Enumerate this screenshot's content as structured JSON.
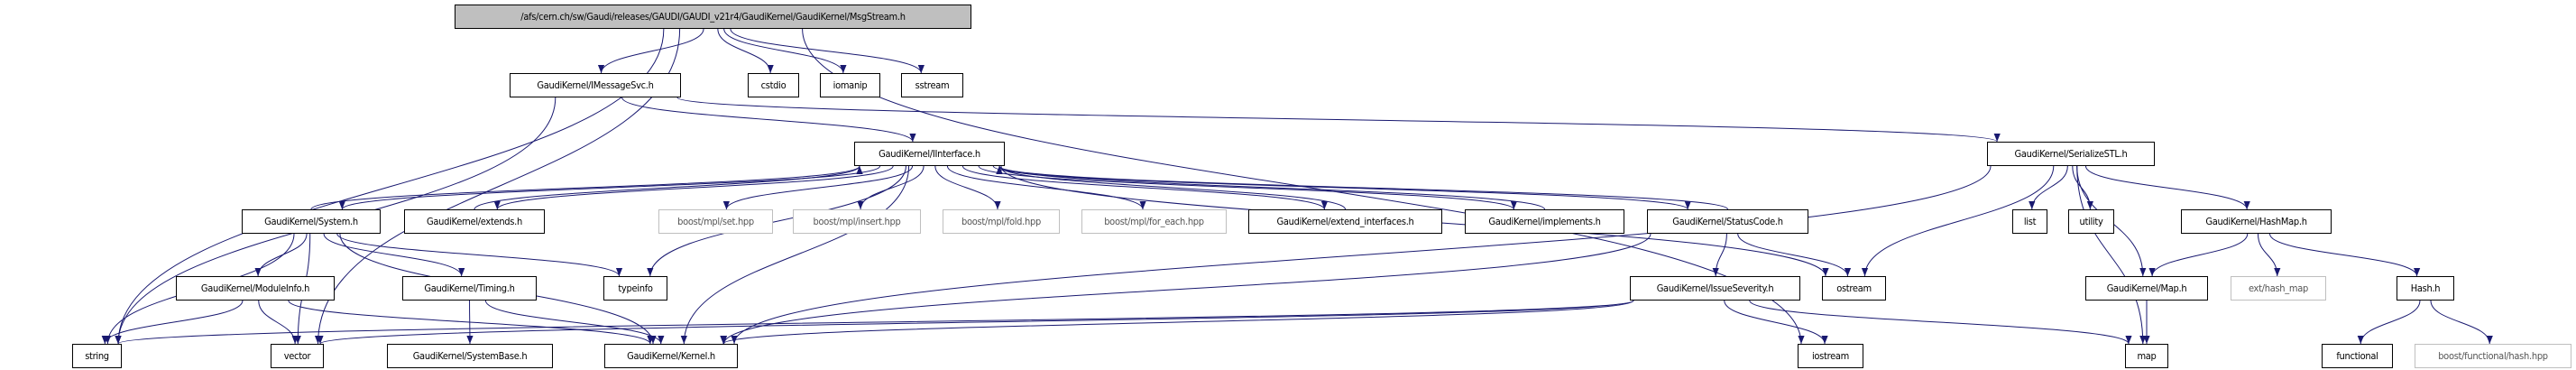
{
  "colors": {
    "edge": "#191970",
    "root_fill": "#bfbfbf",
    "external_border": "#bfbfbf"
  },
  "nodes": [
    {
      "id": "msgstream",
      "label": "/afs/cern.ch/sw/Gaudi/releases/GAUDI/GAUDI_v21r4/GaudiKernel/GaudiKernel/MsgStream.h",
      "kind": "root"
    },
    {
      "id": "imessagesvc",
      "label": "GaudiKernel/IMessageSvc.h",
      "kind": "doc"
    },
    {
      "id": "cstdio",
      "label": "cstdio",
      "kind": "doc"
    },
    {
      "id": "iomanip",
      "label": "iomanip",
      "kind": "doc"
    },
    {
      "id": "sstream",
      "label": "sstream",
      "kind": "doc"
    },
    {
      "id": "iinterface",
      "label": "GaudiKernel/IInterface.h",
      "kind": "doc"
    },
    {
      "id": "serializestl",
      "label": "GaudiKernel/SerializeSTL.h",
      "kind": "doc"
    },
    {
      "id": "system",
      "label": "GaudiKernel/System.h",
      "kind": "doc"
    },
    {
      "id": "extends",
      "label": "GaudiKernel/extends.h",
      "kind": "doc"
    },
    {
      "id": "mplset",
      "label": "boost/mpl/set.hpp",
      "kind": "ext"
    },
    {
      "id": "mplinsert",
      "label": "boost/mpl/insert.hpp",
      "kind": "ext"
    },
    {
      "id": "mplfold",
      "label": "boost/mpl/fold.hpp",
      "kind": "ext"
    },
    {
      "id": "mplforeach",
      "label": "boost/mpl/for_each.hpp",
      "kind": "ext"
    },
    {
      "id": "extendinterfaces",
      "label": "GaudiKernel/extend_interfaces.h",
      "kind": "doc"
    },
    {
      "id": "implements",
      "label": "GaudiKernel/implements.h",
      "kind": "doc"
    },
    {
      "id": "statuscode",
      "label": "GaudiKernel/StatusCode.h",
      "kind": "doc"
    },
    {
      "id": "list",
      "label": "list",
      "kind": "doc"
    },
    {
      "id": "utility",
      "label": "utility",
      "kind": "doc"
    },
    {
      "id": "hashmap",
      "label": "GaudiKernel/HashMap.h",
      "kind": "doc"
    },
    {
      "id": "moduleinfo",
      "label": "GaudiKernel/ModuleInfo.h",
      "kind": "doc"
    },
    {
      "id": "timing",
      "label": "GaudiKernel/Timing.h",
      "kind": "doc"
    },
    {
      "id": "typeinfo",
      "label": "typeinfo",
      "kind": "doc"
    },
    {
      "id": "issueseverity",
      "label": "GaudiKernel/IssueSeverity.h",
      "kind": "doc"
    },
    {
      "id": "ostream",
      "label": "ostream",
      "kind": "doc"
    },
    {
      "id": "maph",
      "label": "GaudiKernel/Map.h",
      "kind": "doc"
    },
    {
      "id": "exthashmap",
      "label": "ext/hash_map",
      "kind": "ext"
    },
    {
      "id": "hashh",
      "label": "Hash.h",
      "kind": "doc"
    },
    {
      "id": "string",
      "label": "string",
      "kind": "doc"
    },
    {
      "id": "vector",
      "label": "vector",
      "kind": "doc"
    },
    {
      "id": "systembase",
      "label": "GaudiKernel/SystemBase.h",
      "kind": "doc"
    },
    {
      "id": "kernel",
      "label": "GaudiKernel/Kernel.h",
      "kind": "doc"
    },
    {
      "id": "iostream",
      "label": "iostream",
      "kind": "doc"
    },
    {
      "id": "map",
      "label": "map",
      "kind": "doc"
    },
    {
      "id": "functional",
      "label": "functional",
      "kind": "doc"
    },
    {
      "id": "boosthash",
      "label": "boost/functional/hash.hpp",
      "kind": "ext"
    }
  ],
  "edges": [
    [
      "msgstream",
      "string"
    ],
    [
      "msgstream",
      "vector"
    ],
    [
      "msgstream",
      "imessagesvc"
    ],
    [
      "msgstream",
      "cstdio"
    ],
    [
      "msgstream",
      "iomanip"
    ],
    [
      "msgstream",
      "sstream"
    ],
    [
      "msgstream",
      "iostream"
    ],
    [
      "imessagesvc",
      "string"
    ],
    [
      "imessagesvc",
      "iinterface"
    ],
    [
      "imessagesvc",
      "serializestl"
    ],
    [
      "iinterface",
      "system"
    ],
    [
      "iinterface",
      "extends"
    ],
    [
      "iinterface",
      "mplset"
    ],
    [
      "iinterface",
      "mplinsert"
    ],
    [
      "iinterface",
      "mplfold"
    ],
    [
      "iinterface",
      "mplforeach"
    ],
    [
      "iinterface",
      "extendinterfaces"
    ],
    [
      "iinterface",
      "implements"
    ],
    [
      "iinterface",
      "statuscode"
    ],
    [
      "iinterface",
      "typeinfo"
    ],
    [
      "iinterface",
      "kernel"
    ],
    [
      "iinterface",
      "ostream"
    ],
    [
      "system",
      "iinterface"
    ],
    [
      "extends",
      "iinterface"
    ],
    [
      "extendinterfaces",
      "iinterface"
    ],
    [
      "implements",
      "iinterface"
    ],
    [
      "statuscode",
      "iinterface"
    ],
    [
      "system",
      "string"
    ],
    [
      "system",
      "vector"
    ],
    [
      "system",
      "moduleinfo"
    ],
    [
      "system",
      "timing"
    ],
    [
      "system",
      "typeinfo"
    ],
    [
      "system",
      "kernel"
    ],
    [
      "moduleinfo",
      "string"
    ],
    [
      "moduleinfo",
      "vector"
    ],
    [
      "moduleinfo",
      "kernel"
    ],
    [
      "timing",
      "systembase"
    ],
    [
      "timing",
      "kernel"
    ],
    [
      "statuscode",
      "issueseverity"
    ],
    [
      "statuscode",
      "ostream"
    ],
    [
      "statuscode",
      "kernel"
    ],
    [
      "issueseverity",
      "string"
    ],
    [
      "issueseverity",
      "vector"
    ],
    [
      "issueseverity",
      "kernel"
    ],
    [
      "issueseverity",
      "iostream"
    ],
    [
      "issueseverity",
      "map"
    ],
    [
      "serializestl",
      "ostream"
    ],
    [
      "serializestl",
      "list"
    ],
    [
      "serializestl",
      "utility"
    ],
    [
      "serializestl",
      "maph"
    ],
    [
      "serializestl",
      "hashmap"
    ],
    [
      "serializestl",
      "map"
    ],
    [
      "serializestl",
      "kernel"
    ],
    [
      "hashmap",
      "maph"
    ],
    [
      "hashmap",
      "exthashmap"
    ],
    [
      "hashmap",
      "hashh"
    ],
    [
      "maph",
      "map"
    ],
    [
      "hashh",
      "functional"
    ],
    [
      "hashh",
      "boosthash"
    ]
  ]
}
